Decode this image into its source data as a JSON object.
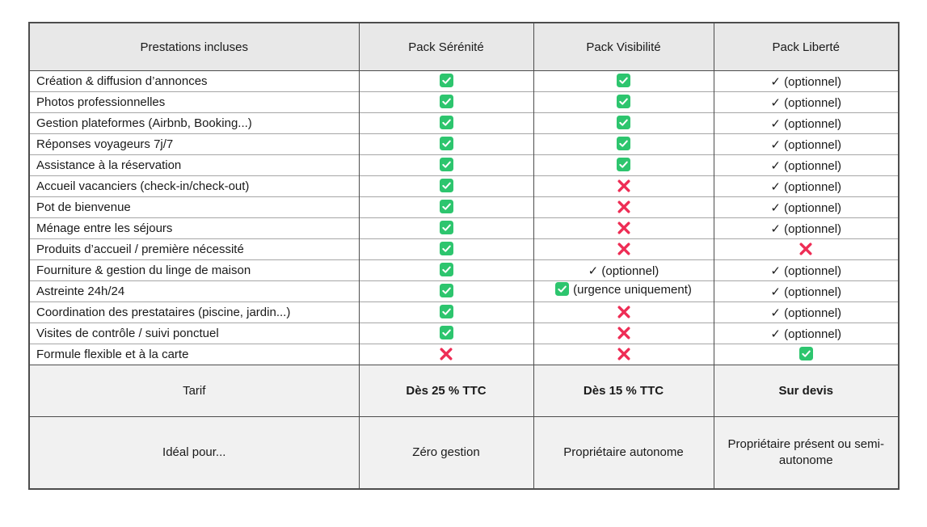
{
  "colors": {
    "check_green": "#2dc56e",
    "cross_red": "#ee2d55",
    "header_bg": "#e8e8e8",
    "footer_bg": "#f1f1f1",
    "border_dark": "#4d4d4d",
    "row_line": "#a6a6a6"
  },
  "table": {
    "columns": [
      "Prestations incluses",
      "Pack Sérénité",
      "Pack Visibilité",
      "Pack Liberté"
    ],
    "rows": [
      {
        "label": "Création & diffusion d’annonces",
        "cells": [
          {
            "type": "check"
          },
          {
            "type": "check"
          },
          {
            "type": "text",
            "mark": "✓",
            "text": "(optionnel)"
          }
        ]
      },
      {
        "label": "Photos professionnelles",
        "cells": [
          {
            "type": "check"
          },
          {
            "type": "check"
          },
          {
            "type": "text",
            "mark": "✓",
            "text": "(optionnel)"
          }
        ]
      },
      {
        "label": "Gestion plateformes (Airbnb, Booking...)",
        "cells": [
          {
            "type": "check"
          },
          {
            "type": "check"
          },
          {
            "type": "text",
            "mark": "✓",
            "text": "(optionnel)"
          }
        ]
      },
      {
        "label": "Réponses voyageurs 7j/7",
        "cells": [
          {
            "type": "check"
          },
          {
            "type": "check"
          },
          {
            "type": "text",
            "mark": "✓",
            "text": "(optionnel)"
          }
        ]
      },
      {
        "label": "Assistance à la réservation",
        "cells": [
          {
            "type": "check"
          },
          {
            "type": "check"
          },
          {
            "type": "text",
            "mark": "✓",
            "text": "(optionnel)"
          }
        ]
      },
      {
        "label": "Accueil vacanciers (check-in/check-out)",
        "cells": [
          {
            "type": "check"
          },
          {
            "type": "cross"
          },
          {
            "type": "text",
            "mark": "✓",
            "text": "(optionnel)"
          }
        ]
      },
      {
        "label": "Pot de bienvenue",
        "cells": [
          {
            "type": "check"
          },
          {
            "type": "cross"
          },
          {
            "type": "text",
            "mark": "✓",
            "text": "(optionnel)"
          }
        ]
      },
      {
        "label": "Ménage entre les séjours",
        "cells": [
          {
            "type": "check"
          },
          {
            "type": "cross"
          },
          {
            "type": "text",
            "mark": "✓",
            "text": "(optionnel)"
          }
        ]
      },
      {
        "label": "Produits d’accueil / première nécessité",
        "cells": [
          {
            "type": "check"
          },
          {
            "type": "cross"
          },
          {
            "type": "cross"
          }
        ]
      },
      {
        "label": "Fourniture & gestion du linge de maison",
        "cells": [
          {
            "type": "check"
          },
          {
            "type": "text",
            "mark": "✓",
            "text": "(optionnel)"
          },
          {
            "type": "text",
            "mark": "✓",
            "text": "(optionnel)"
          }
        ]
      },
      {
        "label": "Astreinte 24h/24",
        "cells": [
          {
            "type": "check"
          },
          {
            "type": "check-text",
            "text": "(urgence uniquement)"
          },
          {
            "type": "text",
            "mark": "✓",
            "text": "(optionnel)"
          }
        ]
      },
      {
        "label": "Coordination des prestataires (piscine, jardin...)",
        "cells": [
          {
            "type": "check"
          },
          {
            "type": "cross"
          },
          {
            "type": "text",
            "mark": "✓",
            "text": "(optionnel)"
          }
        ]
      },
      {
        "label": "Visites de contrôle / suivi ponctuel",
        "cells": [
          {
            "type": "check"
          },
          {
            "type": "cross"
          },
          {
            "type": "text",
            "mark": "✓",
            "text": "(optionnel)"
          }
        ]
      },
      {
        "label": "Formule flexible et à la carte",
        "cells": [
          {
            "type": "cross"
          },
          {
            "type": "cross"
          },
          {
            "type": "check"
          }
        ]
      }
    ],
    "tarif": {
      "label": "Tarif",
      "values": [
        "Dès 25 % TTC",
        "Dès 15 % TTC",
        "Sur devis"
      ]
    },
    "ideal": {
      "label": "Idéal pour...",
      "values": [
        "Zéro gestion",
        "Propriétaire autonome",
        "Propriétaire présent ou semi-autonome"
      ]
    }
  }
}
